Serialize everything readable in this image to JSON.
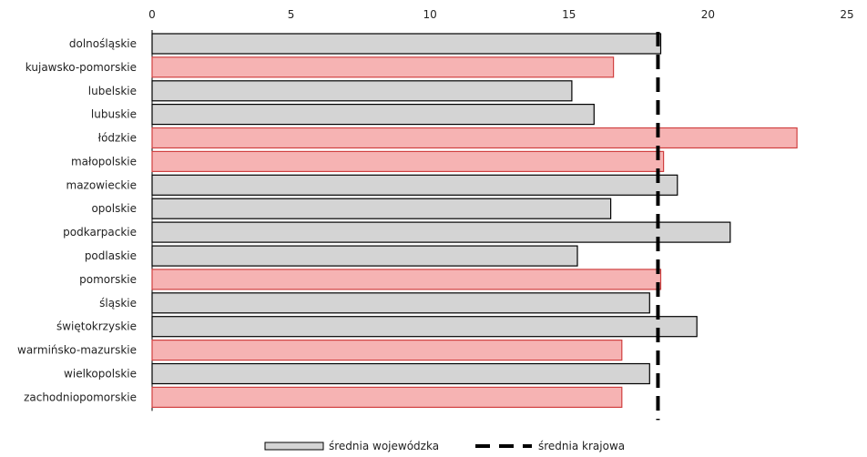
{
  "chart_data": {
    "type": "bar",
    "orientation": "horizontal",
    "title": "",
    "xlabel": "",
    "ylabel": "",
    "xlim": [
      0,
      25
    ],
    "xticks": [
      0,
      5,
      10,
      15,
      20,
      25
    ],
    "xtick_labels": [
      "0",
      "5",
      "10",
      "15",
      "20",
      "25"
    ],
    "axis_position": "top",
    "grid": false,
    "categories": [
      "dolnośląskie",
      "kujawsko-pomorskie",
      "lubelskie",
      "lubuskie",
      "łódzkie",
      "małopolskie",
      "mazowieckie",
      "opolskie",
      "podkarpackie",
      "podlaskie",
      "pomorskie",
      "śląskie",
      "świętokrzyskie",
      "warmińsko-mazurskie",
      "wielkopolskie",
      "zachodniopomorskie"
    ],
    "values": [
      18.3,
      16.6,
      15.1,
      15.9,
      23.2,
      18.4,
      18.9,
      16.5,
      20.8,
      15.3,
      18.3,
      17.9,
      19.6,
      16.9,
      17.9,
      16.9
    ],
    "highlighted": [
      false,
      true,
      false,
      false,
      true,
      true,
      false,
      false,
      false,
      false,
      true,
      false,
      false,
      true,
      false,
      true
    ],
    "reference_line": {
      "name": "średnia krajowa",
      "value": 18.2,
      "style": "dashed"
    },
    "legend": {
      "placement": "bottom",
      "entries": [
        {
          "label": "średnia wojewódzka",
          "type": "bar"
        },
        {
          "label": "średnia krajowa",
          "type": "dashed-line"
        }
      ]
    },
    "colors": {
      "bar_default_fill": "#d4d4d4",
      "bar_default_stroke": "#000000",
      "bar_highlight_fill": "#f6b3b3",
      "bar_highlight_stroke": "#d04040",
      "reference_line": "#000000"
    }
  }
}
